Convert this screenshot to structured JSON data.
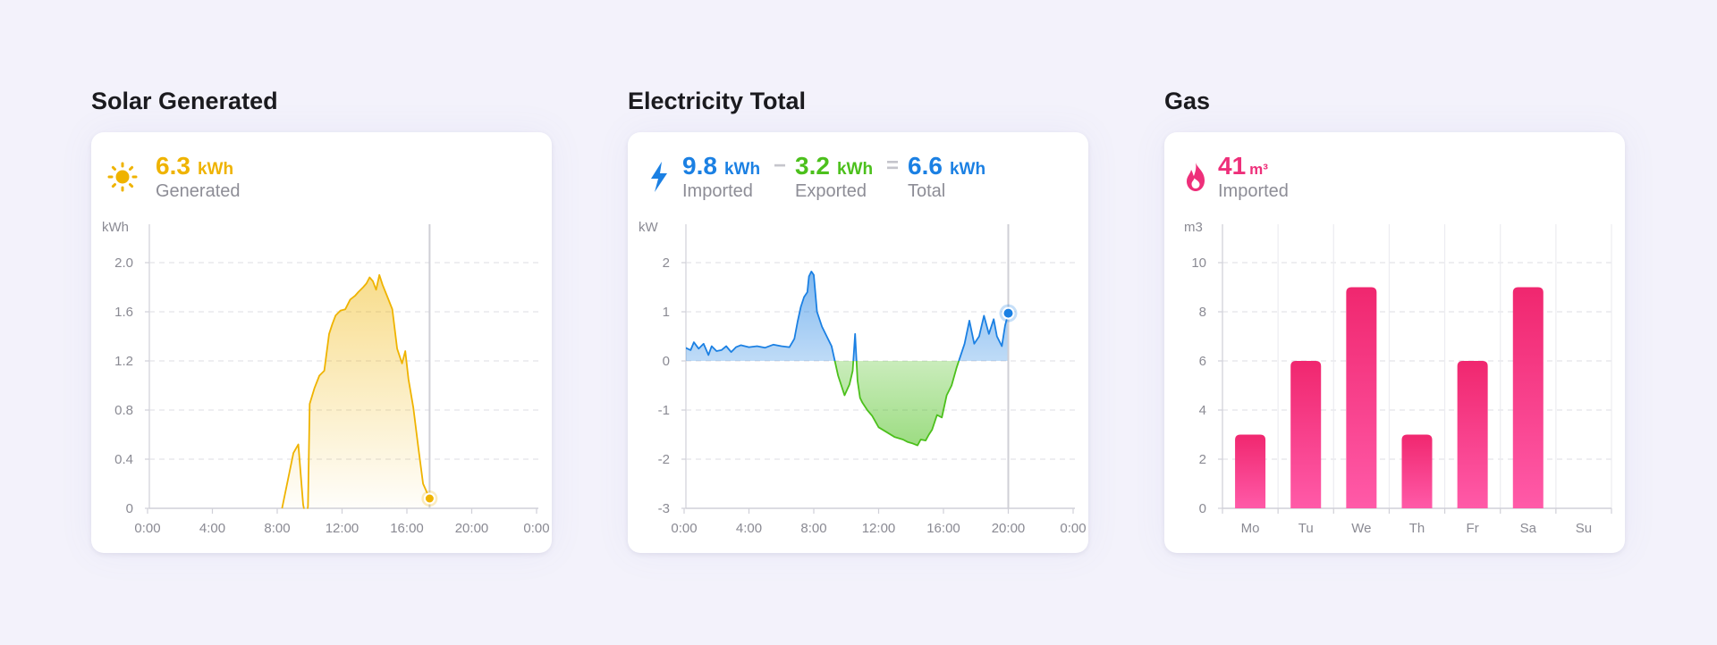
{
  "colors": {
    "solar": "#efb300",
    "imported": "#1b80e3",
    "exported": "#4cc01c",
    "gas": "#ee2f7a",
    "grid": "#dcdce3",
    "axis": "#d0d0d8"
  },
  "solar": {
    "title": "Solar Generated",
    "icon": "sun-icon",
    "value": "6.3",
    "unit": "kWh",
    "caption": "Generated"
  },
  "electricity": {
    "title": "Electricity Total",
    "icon": "bolt-icon",
    "imported": {
      "value": "9.8",
      "unit": "kWh",
      "caption": "Imported"
    },
    "minus_sign": "−",
    "exported": {
      "value": "3.2",
      "unit": "kWh",
      "caption": "Exported"
    },
    "equals_sign": "=",
    "total": {
      "value": "6.6",
      "unit": "kWh",
      "caption": "Total"
    }
  },
  "gas": {
    "title": "Gas",
    "icon": "flame-icon",
    "value": "41",
    "unit": "m³",
    "caption": "Imported"
  },
  "chart_data": [
    {
      "type": "area",
      "ylabel": "kWh",
      "ylim": [
        0,
        2.0
      ],
      "yticks": [
        "0",
        "0.4",
        "0.8",
        "1.2",
        "1.6",
        "2.0"
      ],
      "xticks": [
        "0:00",
        "4:00",
        "8:00",
        "12:00",
        "16:00",
        "20:00",
        "0:00"
      ],
      "xlim": [
        0,
        24
      ],
      "cursor_x": 17.4,
      "series": [
        {
          "x": [
            8.3,
            9.0,
            9.3,
            9.6,
            9.8,
            9.9,
            10.0,
            10.3,
            10.6,
            10.9,
            11.2,
            11.4,
            11.6,
            11.9,
            12.2,
            12.5,
            12.8,
            13.0,
            13.3,
            13.5,
            13.7,
            13.9,
            14.1,
            14.3,
            14.5,
            14.8,
            15.1,
            15.4,
            15.7,
            15.9,
            16.1,
            16.4,
            16.7,
            17.0,
            17.4
          ],
          "y": [
            0.0,
            0.45,
            0.52,
            0.03,
            -0.1,
            0.02,
            0.85,
            0.98,
            1.08,
            1.12,
            1.42,
            1.5,
            1.57,
            1.61,
            1.62,
            1.7,
            1.73,
            1.76,
            1.8,
            1.83,
            1.88,
            1.85,
            1.78,
            1.9,
            1.82,
            1.72,
            1.62,
            1.3,
            1.18,
            1.28,
            1.05,
            0.82,
            0.5,
            0.2,
            0.08
          ]
        }
      ]
    },
    {
      "type": "area",
      "ylabel": "kW",
      "ylim": [
        -3,
        2
      ],
      "yticks": [
        "-3",
        "-2",
        "-1",
        "0",
        "1",
        "2"
      ],
      "xticks": [
        "0:00",
        "4:00",
        "8:00",
        "12:00",
        "16:00",
        "20:00",
        "0:00"
      ],
      "xlim": [
        0,
        24
      ],
      "cursor_x": 20.0,
      "series": [
        {
          "x": [
            0.0,
            0.4,
            0.6,
            0.9,
            1.2,
            1.5,
            1.7,
            2.0,
            2.3,
            2.6,
            2.9,
            3.2,
            3.5,
            4.0,
            4.5,
            5.0,
            5.5,
            6.0,
            6.5,
            6.8,
            7.0,
            7.2,
            7.4,
            7.6,
            7.7,
            7.85,
            8.0,
            8.2,
            8.5,
            8.8,
            9.1,
            9.5,
            9.9,
            10.2,
            10.4,
            10.55,
            10.7,
            10.85,
            11.0,
            11.3,
            11.6,
            12.0,
            12.5,
            13.0,
            13.5,
            13.8,
            14.1,
            14.4,
            14.6,
            14.9,
            15.1,
            15.3,
            15.6,
            15.9,
            16.2,
            16.5,
            16.8,
            17.0,
            17.3,
            17.6,
            17.9,
            18.2,
            18.5,
            18.8,
            19.1,
            19.3,
            19.6,
            19.8,
            20.0
          ],
          "y": [
            0.28,
            0.22,
            0.38,
            0.25,
            0.35,
            0.12,
            0.3,
            0.2,
            0.22,
            0.3,
            0.18,
            0.28,
            0.32,
            0.28,
            0.3,
            0.27,
            0.33,
            0.3,
            0.28,
            0.45,
            0.8,
            1.1,
            1.3,
            1.4,
            1.72,
            1.82,
            1.75,
            1.0,
            0.7,
            0.5,
            0.3,
            -0.3,
            -0.7,
            -0.48,
            -0.2,
            0.55,
            -0.4,
            -0.75,
            -0.85,
            -1.0,
            -1.12,
            -1.35,
            -1.45,
            -1.55,
            -1.6,
            -1.65,
            -1.68,
            -1.72,
            -1.6,
            -1.62,
            -1.5,
            -1.4,
            -1.1,
            -1.15,
            -0.7,
            -0.5,
            -0.15,
            0.05,
            0.35,
            0.82,
            0.35,
            0.5,
            0.92,
            0.55,
            0.85,
            0.5,
            0.3,
            0.72,
            0.97
          ]
        }
      ]
    },
    {
      "type": "bar",
      "ylabel": "m3",
      "ylim": [
        0,
        10
      ],
      "yticks": [
        "0",
        "2",
        "4",
        "6",
        "8",
        "10"
      ],
      "categories": [
        "Mo",
        "Tu",
        "We",
        "Th",
        "Fr",
        "Sa",
        "Su"
      ],
      "values": [
        3,
        6,
        9,
        3,
        6,
        9,
        0
      ]
    }
  ]
}
